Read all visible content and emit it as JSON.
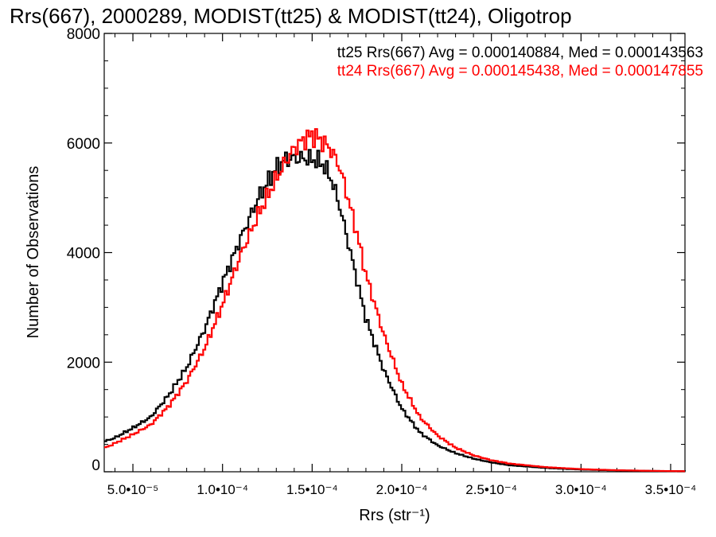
{
  "chart_data": {
    "type": "line",
    "title": "Rrs(667), 2000289, MODIST(tt25) & MODIST(tt24), Oligotrop",
    "xlabel": "Rrs (str⁻¹)",
    "ylabel": "Number of Observations",
    "xlim": [
      3.4e-05,
      0.000358
    ],
    "ylim": [
      0,
      8000
    ],
    "x_ticks": [
      5e-05,
      0.0001,
      0.00015,
      0.0002,
      0.00025,
      0.0003,
      0.00035
    ],
    "x_tick_labels": [
      "5.0•10⁻⁵",
      "1.0•10⁻⁴",
      "1.5•10⁻⁴",
      "2.0•10⁻⁴",
      "2.5•10⁻⁴",
      "3.0•10⁻⁴",
      "3.5•10⁻⁴"
    ],
    "y_ticks": [
      0,
      2000,
      4000,
      6000,
      8000
    ],
    "y_tick_labels": [
      "0",
      "2000",
      "4000",
      "6000",
      "8000"
    ],
    "grid": false,
    "legend_placement": "top-right",
    "series": [
      {
        "name": "tt25",
        "label": "tt25 Rrs(667) Avg = 0.000140884, Med = 0.000143563",
        "color": "#000000",
        "x": [
          3.4e-05,
          4e-05,
          5e-05,
          6e-05,
          7e-05,
          8e-05,
          9e-05,
          0.0001,
          0.00011,
          0.00012,
          0.00013,
          0.000135,
          0.00014,
          0.000145,
          0.00015,
          0.000155,
          0.00016,
          0.000165,
          0.00017,
          0.000175,
          0.00018,
          0.00019,
          0.0002,
          0.00021,
          0.00022,
          0.00023,
          0.00024,
          0.00025,
          0.00026,
          0.00028,
          0.0003,
          0.00032,
          0.00034,
          0.000358
        ],
        "y": [
          550,
          620,
          800,
          1000,
          1400,
          1900,
          2600,
          3450,
          4250,
          5000,
          5550,
          5700,
          5720,
          5720,
          5700,
          5650,
          5400,
          4900,
          4200,
          3500,
          2800,
          1850,
          1150,
          720,
          480,
          340,
          240,
          170,
          120,
          70,
          40,
          25,
          15,
          10
        ]
      },
      {
        "name": "tt24",
        "label": "tt24 Rrs(667) Avg = 0.000145438, Med = 0.000147855",
        "color": "#ff0000",
        "x": [
          3.4e-05,
          4e-05,
          5e-05,
          6e-05,
          7e-05,
          8e-05,
          9e-05,
          0.0001,
          0.00011,
          0.00012,
          0.00013,
          0.000135,
          0.00014,
          0.000145,
          0.00015,
          0.000155,
          0.00016,
          0.000165,
          0.00017,
          0.000175,
          0.00018,
          0.00019,
          0.0002,
          0.00021,
          0.00022,
          0.00023,
          0.00024,
          0.00025,
          0.00026,
          0.00028,
          0.0003,
          0.00032,
          0.00034,
          0.000358
        ],
        "y": [
          430,
          520,
          680,
          860,
          1200,
          1650,
          2250,
          3050,
          3950,
          4700,
          5350,
          5650,
          5900,
          6050,
          6150,
          6050,
          5900,
          5600,
          5000,
          4350,
          3600,
          2500,
          1600,
          1000,
          660,
          440,
          300,
          210,
          150,
          85,
          48,
          28,
          16,
          10
        ]
      }
    ]
  }
}
